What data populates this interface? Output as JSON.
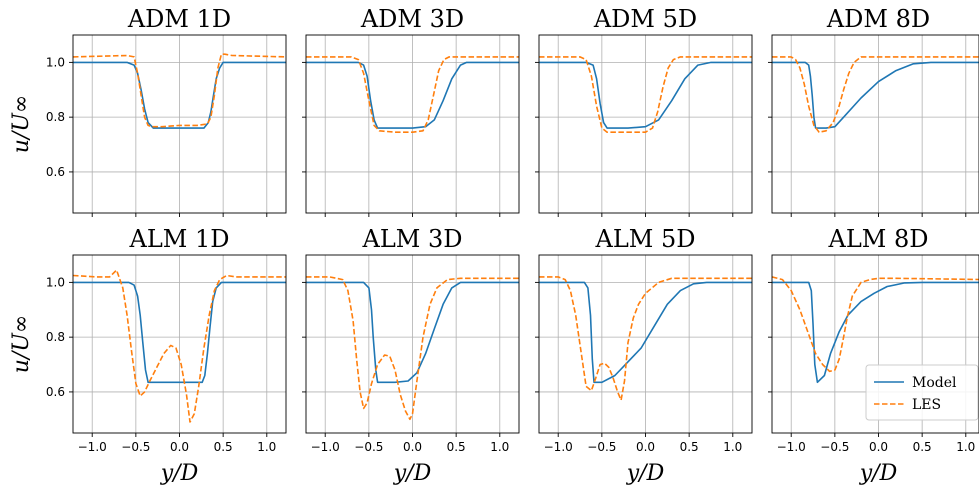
{
  "chart_data": {
    "type": "line",
    "xlabel": "y/D",
    "ylabel": "u/U∞",
    "xlim": [
      -1.22,
      1.22
    ],
    "ylim": [
      0.45,
      1.1
    ],
    "xticks": [
      -1.0,
      -0.5,
      0.0,
      0.5,
      1.0
    ],
    "xtick_labels": [
      "−1.0",
      "−0.5",
      "0.0",
      "0.5",
      "1.0"
    ],
    "yticks": [
      0.6,
      0.8,
      1.0
    ],
    "ytick_labels": [
      "0.6",
      "0.8",
      "1.0"
    ],
    "grid": true,
    "legend": {
      "placement": "lower-right of ALM 8D panel",
      "entries": [
        "Model",
        "LES"
      ]
    },
    "colors": {
      "model": "#1f77b4",
      "les": "#ff7f0e"
    },
    "panels": [
      {
        "title": "ADM 1D",
        "series": [
          {
            "name": "Model",
            "x": [
              -1.22,
              -0.6,
              -0.52,
              -0.48,
              -0.44,
              -0.4,
              -0.36,
              -0.3,
              0.0,
              0.28,
              0.33,
              0.36,
              0.39,
              0.42,
              0.46,
              0.5,
              1.22
            ],
            "y": [
              1.0,
              1.0,
              0.99,
              0.96,
              0.9,
              0.83,
              0.78,
              0.76,
              0.76,
              0.76,
              0.78,
              0.82,
              0.88,
              0.94,
              0.98,
              1.0,
              1.0
            ]
          },
          {
            "name": "LES",
            "x": [
              -1.22,
              -0.6,
              -0.52,
              -0.48,
              -0.44,
              -0.4,
              -0.36,
              -0.32,
              -0.2,
              0.0,
              0.2,
              0.32,
              0.36,
              0.4,
              0.44,
              0.48,
              0.52,
              0.6,
              1.22
            ],
            "y": [
              1.02,
              1.025,
              1.02,
              0.96,
              0.88,
              0.8,
              0.77,
              0.765,
              0.765,
              0.77,
              0.77,
              0.775,
              0.8,
              0.88,
              0.98,
              1.03,
              1.03,
              1.025,
              1.02
            ]
          }
        ]
      },
      {
        "title": "ADM 3D",
        "series": [
          {
            "name": "Model",
            "x": [
              -1.22,
              -0.62,
              -0.56,
              -0.52,
              -0.48,
              -0.44,
              -0.4,
              0.0,
              0.15,
              0.25,
              0.35,
              0.45,
              0.55,
              0.62,
              1.22
            ],
            "y": [
              1.0,
              1.0,
              0.99,
              0.95,
              0.86,
              0.79,
              0.76,
              0.76,
              0.765,
              0.79,
              0.86,
              0.94,
              0.99,
              1.0,
              1.0
            ]
          },
          {
            "name": "LES",
            "x": [
              -1.22,
              -0.7,
              -0.62,
              -0.56,
              -0.5,
              -0.44,
              -0.38,
              -0.2,
              0.0,
              0.12,
              0.18,
              0.24,
              0.3,
              0.36,
              0.42,
              0.5,
              1.22
            ],
            "y": [
              1.02,
              1.02,
              1.01,
              0.96,
              0.86,
              0.77,
              0.75,
              0.745,
              0.745,
              0.75,
              0.79,
              0.88,
              0.97,
              1.01,
              1.02,
              1.02,
              1.02
            ]
          }
        ]
      },
      {
        "title": "ADM 5D",
        "series": [
          {
            "name": "Model",
            "x": [
              -1.22,
              -0.68,
              -0.6,
              -0.56,
              -0.52,
              -0.48,
              -0.44,
              -0.2,
              0.0,
              0.15,
              0.3,
              0.45,
              0.6,
              0.75,
              0.85,
              1.22
            ],
            "y": [
              1.0,
              1.0,
              0.99,
              0.94,
              0.85,
              0.78,
              0.76,
              0.76,
              0.765,
              0.79,
              0.86,
              0.94,
              0.99,
              1.0,
              1.0,
              1.0
            ]
          },
          {
            "name": "LES",
            "x": [
              -1.22,
              -0.75,
              -0.68,
              -0.62,
              -0.56,
              -0.5,
              -0.44,
              -0.2,
              0.0,
              0.08,
              0.14,
              0.2,
              0.26,
              0.32,
              0.4,
              0.5,
              1.22
            ],
            "y": [
              1.02,
              1.02,
              1.01,
              0.95,
              0.84,
              0.76,
              0.745,
              0.745,
              0.745,
              0.76,
              0.82,
              0.91,
              0.98,
              1.01,
              1.02,
              1.02,
              1.02
            ]
          }
        ]
      },
      {
        "title": "ADM 8D",
        "series": [
          {
            "name": "Model",
            "x": [
              -1.22,
              -0.84,
              -0.8,
              -0.78,
              -0.76,
              -0.74,
              -0.72,
              -0.6,
              -0.5,
              -0.4,
              -0.2,
              0.0,
              0.2,
              0.4,
              0.6,
              0.75,
              1.22
            ],
            "y": [
              1.0,
              1.0,
              0.99,
              0.95,
              0.88,
              0.8,
              0.76,
              0.76,
              0.765,
              0.8,
              0.87,
              0.93,
              0.97,
              0.995,
              1.0,
              1.0,
              1.0
            ]
          },
          {
            "name": "LES",
            "x": [
              -1.22,
              -1.0,
              -0.95,
              -0.9,
              -0.85,
              -0.8,
              -0.74,
              -0.68,
              -0.6,
              -0.52,
              -0.46,
              -0.4,
              -0.34,
              -0.28,
              -0.2,
              -0.1,
              1.22
            ],
            "y": [
              1.02,
              1.02,
              1.01,
              0.98,
              0.92,
              0.84,
              0.77,
              0.745,
              0.75,
              0.78,
              0.83,
              0.9,
              0.96,
              1.0,
              1.02,
              1.02,
              1.02
            ]
          }
        ]
      },
      {
        "title": "ALM 1D",
        "series": [
          {
            "name": "Model",
            "x": [
              -1.22,
              -0.58,
              -0.52,
              -0.48,
              -0.45,
              -0.42,
              -0.39,
              -0.36,
              0.0,
              0.26,
              0.29,
              0.32,
              0.35,
              0.38,
              0.42,
              0.48,
              1.22
            ],
            "y": [
              1.0,
              1.0,
              0.99,
              0.95,
              0.88,
              0.78,
              0.68,
              0.635,
              0.635,
              0.635,
              0.66,
              0.74,
              0.84,
              0.93,
              0.98,
              1.0,
              1.0
            ]
          },
          {
            "name": "LES",
            "x": [
              -1.22,
              -0.95,
              -0.8,
              -0.72,
              -0.65,
              -0.6,
              -0.55,
              -0.5,
              -0.45,
              -0.4,
              -0.34,
              -0.26,
              -0.18,
              -0.1,
              -0.04,
              0.02,
              0.08,
              0.12,
              0.17,
              0.22,
              0.28,
              0.34,
              0.4,
              0.46,
              0.54,
              0.65,
              1.22
            ],
            "y": [
              1.025,
              1.02,
              1.02,
              1.045,
              0.98,
              0.88,
              0.75,
              0.63,
              0.585,
              0.6,
              0.64,
              0.69,
              0.74,
              0.77,
              0.76,
              0.7,
              0.59,
              0.49,
              0.52,
              0.62,
              0.76,
              0.88,
              0.97,
              1.01,
              1.025,
              1.02,
              1.02
            ]
          }
        ]
      },
      {
        "title": "ALM 3D",
        "series": [
          {
            "name": "Model",
            "x": [
              -1.22,
              -0.56,
              -0.5,
              -0.47,
              -0.45,
              -0.42,
              -0.4,
              -0.2,
              -0.05,
              0.05,
              0.15,
              0.25,
              0.35,
              0.45,
              0.55,
              1.22
            ],
            "y": [
              1.0,
              1.0,
              0.98,
              0.9,
              0.8,
              0.68,
              0.635,
              0.635,
              0.64,
              0.67,
              0.74,
              0.83,
              0.92,
              0.98,
              1.0,
              1.0
            ]
          },
          {
            "name": "LES",
            "x": [
              -1.22,
              -0.95,
              -0.8,
              -0.74,
              -0.68,
              -0.64,
              -0.6,
              -0.56,
              -0.52,
              -0.47,
              -0.4,
              -0.32,
              -0.26,
              -0.2,
              -0.14,
              -0.08,
              -0.03,
              0.0,
              0.05,
              0.12,
              0.2,
              0.28,
              0.4,
              0.55,
              1.22
            ],
            "y": [
              1.02,
              1.02,
              1.01,
              0.97,
              0.86,
              0.72,
              0.6,
              0.54,
              0.56,
              0.63,
              0.7,
              0.735,
              0.73,
              0.68,
              0.59,
              0.53,
              0.5,
              0.52,
              0.64,
              0.8,
              0.92,
              0.98,
              1.01,
              1.015,
              1.015
            ]
          }
        ]
      },
      {
        "title": "ALM 5D",
        "series": [
          {
            "name": "Model",
            "x": [
              -1.22,
              -0.7,
              -0.66,
              -0.63,
              -0.61,
              -0.59,
              -0.5,
              -0.35,
              -0.2,
              -0.05,
              0.1,
              0.25,
              0.4,
              0.55,
              0.7,
              1.22
            ],
            "y": [
              1.0,
              1.0,
              0.98,
              0.88,
              0.72,
              0.635,
              0.635,
              0.66,
              0.71,
              0.76,
              0.84,
              0.92,
              0.97,
              0.995,
              1.0,
              1.0
            ]
          },
          {
            "name": "LES",
            "x": [
              -1.22,
              -1.0,
              -0.92,
              -0.86,
              -0.8,
              -0.74,
              -0.68,
              -0.62,
              -0.57,
              -0.52,
              -0.47,
              -0.42,
              -0.37,
              -0.32,
              -0.28,
              -0.24,
              -0.2,
              -0.14,
              -0.08,
              0.0,
              0.15,
              0.3,
              1.22
            ],
            "y": [
              1.02,
              1.02,
              1.01,
              0.97,
              0.88,
              0.75,
              0.62,
              0.605,
              0.65,
              0.7,
              0.705,
              0.69,
              0.65,
              0.6,
              0.57,
              0.64,
              0.78,
              0.87,
              0.92,
              0.96,
              1.0,
              1.015,
              1.015
            ]
          }
        ]
      },
      {
        "title": "ALM 8D",
        "series": [
          {
            "name": "Model",
            "x": [
              -1.22,
              -0.8,
              -0.77,
              -0.75,
              -0.73,
              -0.7,
              -0.62,
              -0.55,
              -0.45,
              -0.35,
              -0.2,
              -0.05,
              0.1,
              0.3,
              0.5,
              1.22
            ],
            "y": [
              1.0,
              1.0,
              0.97,
              0.85,
              0.7,
              0.635,
              0.66,
              0.74,
              0.82,
              0.88,
              0.93,
              0.96,
              0.985,
              0.998,
              1.0,
              1.0
            ]
          },
          {
            "name": "LES",
            "x": [
              -1.22,
              -1.1,
              -1.0,
              -0.9,
              -0.8,
              -0.72,
              -0.64,
              -0.56,
              -0.5,
              -0.45,
              -0.4,
              -0.36,
              -0.3,
              -0.2,
              -0.1,
              0.0,
              0.2,
              1.22
            ],
            "y": [
              1.02,
              1.01,
              0.97,
              0.9,
              0.81,
              0.74,
              0.7,
              0.675,
              0.68,
              0.72,
              0.8,
              0.87,
              0.95,
              1.0,
              1.01,
              1.015,
              1.015,
              1.01
            ]
          }
        ]
      }
    ]
  }
}
